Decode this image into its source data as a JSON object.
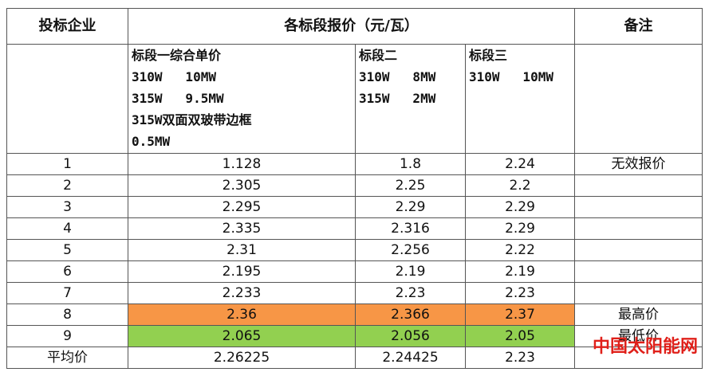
{
  "table": {
    "header": [
      "投标企业",
      "各标段报价（元/瓦）",
      "备注"
    ],
    "subheader": [
      [
        "标段一综合单价",
        "310W   10MW",
        "315W   9.5MW",
        "315W双面双玻带边框",
        "0.5MW"
      ],
      [
        "标段二",
        "310W   8MW",
        "315W   2MW"
      ],
      [
        "标段三",
        "310W   10MW"
      ]
    ],
    "rows": [
      [
        "1",
        "1.128",
        "1.8",
        "2.24",
        "无效报价"
      ],
      [
        "2",
        "2.305",
        "2.25",
        "2.2",
        ""
      ],
      [
        "3",
        "2.295",
        "2.29",
        "2.29",
        ""
      ],
      [
        "4",
        "2.335",
        "2.316",
        "2.29",
        ""
      ],
      [
        "5",
        "2.31",
        "2.256",
        "2.22",
        ""
      ],
      [
        "6",
        "2.195",
        "2.19",
        "2.19",
        ""
      ],
      [
        "7",
        "2.233",
        "2.23",
        "2.23",
        ""
      ],
      [
        "8",
        "2.36",
        "2.366",
        "2.37",
        "最高价"
      ],
      [
        "9",
        "2.065",
        "2.056",
        "2.05",
        "最低价"
      ],
      [
        "平均价",
        "2.26225",
        "2.24425",
        "2.23",
        ""
      ]
    ],
    "highlight": {
      "7": "#f79646",
      "8": "#92d050"
    },
    "watermark": "中国太阳能网"
  }
}
